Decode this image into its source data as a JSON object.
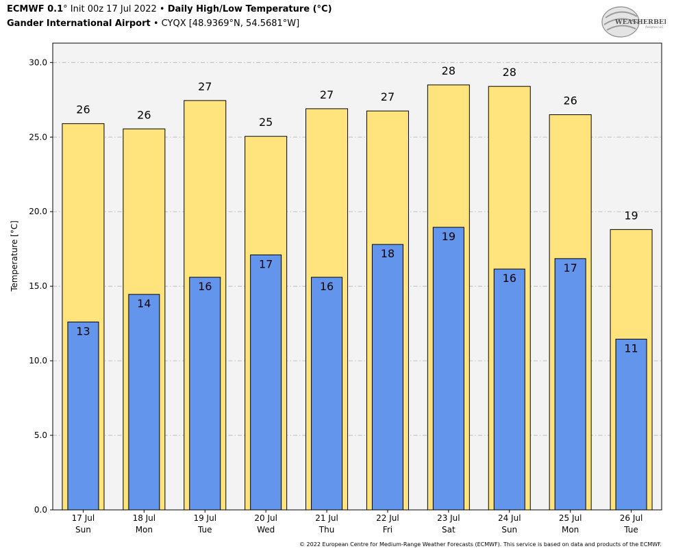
{
  "header": {
    "model": "ECMWF 0.1",
    "deg": "°",
    "init": " Init 00z 17 Jul 2022",
    "bullet": " • ",
    "product": "Daily High/Low Temperature (°C)",
    "station": "Gander International Airport",
    "station_info": "CYQX [48.9369°N, 54.5681°W]"
  },
  "logo": {
    "text": "WEATHERBELL",
    "sub": "Analytics LLC"
  },
  "footer": "© 2022 European Centre for Medium-Range Weather Forecasts (ECMWF). This service is based on data and products of the ECMWF.",
  "colors": {
    "high": "#FFE37D",
    "low": "#6495ED",
    "plot_bg": "#F3F3F3",
    "grid": "#B0B0B0"
  },
  "chart_data": {
    "type": "bar",
    "ylabel": "Temperature [°C]",
    "ylim": [
      0,
      31.3
    ],
    "yticks": [
      "0.0",
      "5.0",
      "10.0",
      "15.0",
      "20.0",
      "25.0",
      "30.0"
    ],
    "ytick_values": [
      0,
      5,
      10,
      15,
      20,
      25,
      30
    ],
    "grid": true,
    "categories": [
      "17 Jul",
      "18 Jul",
      "19 Jul",
      "20 Jul",
      "21 Jul",
      "22 Jul",
      "23 Jul",
      "24 Jul",
      "25 Jul",
      "26 Jul"
    ],
    "days": [
      "Sun",
      "Mon",
      "Tue",
      "Wed",
      "Thu",
      "Fri",
      "Sat",
      "Sun",
      "Mon",
      "Tue"
    ],
    "series": [
      {
        "key": "high",
        "values": [
          25.9,
          25.55,
          27.45,
          25.05,
          26.9,
          26.75,
          28.5,
          28.4,
          26.5,
          18.8
        ],
        "labels": [
          "26",
          "26",
          "27",
          "25",
          "27",
          "27",
          "28",
          "28",
          "26",
          "19"
        ]
      },
      {
        "key": "low",
        "values": [
          12.6,
          14.45,
          15.6,
          17.1,
          15.6,
          17.8,
          18.95,
          16.15,
          16.85,
          11.45
        ],
        "labels": [
          "13",
          "14",
          "16",
          "17",
          "16",
          "18",
          "19",
          "16",
          "17",
          "11"
        ]
      }
    ]
  }
}
